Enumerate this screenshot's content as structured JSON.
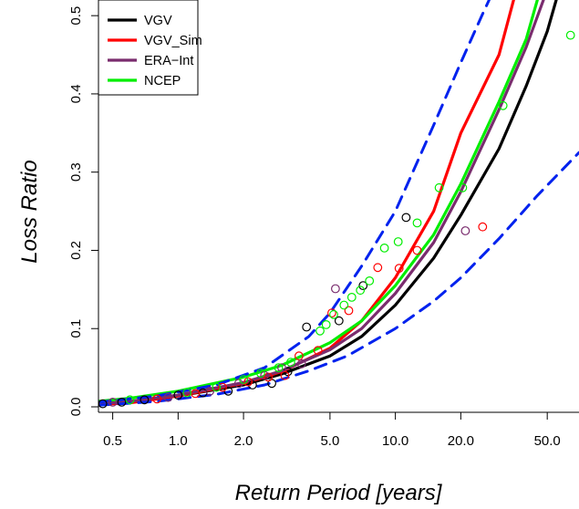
{
  "chart_data": {
    "type": "scatter",
    "xlabel": "Return Period [years]",
    "ylabel": "Loss Ratio",
    "x_scale": "log",
    "xlim": [
      0.43,
      70
    ],
    "ylim": [
      -0.007,
      0.52
    ],
    "x_ticks": [
      0.5,
      1.0,
      2.0,
      5.0,
      10.0,
      20.0,
      50.0
    ],
    "x_tick_labels": [
      "0.5",
      "1.0",
      "2.0",
      "5.0",
      "10.0",
      "20.0",
      "50.0"
    ],
    "y_ticks": [
      0.0,
      0.1,
      0.2,
      0.3,
      0.4,
      0.5
    ],
    "y_tick_labels": [
      "0.0",
      "0.1",
      "0.2",
      "0.3",
      "0.4",
      "0.5"
    ],
    "legend_position": "top-left",
    "series": [
      {
        "name": "VGV",
        "color": "#000000",
        "style": "solid",
        "curve": [
          [
            0.43,
            0.003
          ],
          [
            0.6,
            0.006
          ],
          [
            1,
            0.014
          ],
          [
            2,
            0.028
          ],
          [
            3,
            0.042
          ],
          [
            5,
            0.065
          ],
          [
            7,
            0.09
          ],
          [
            10,
            0.13
          ],
          [
            15,
            0.19
          ],
          [
            20,
            0.245
          ],
          [
            30,
            0.33
          ],
          [
            40,
            0.41
          ],
          [
            50,
            0.48
          ],
          [
            55,
            0.52
          ]
        ],
        "points": [
          [
            0.45,
            0.004
          ],
          [
            0.55,
            0.006
          ],
          [
            0.7,
            0.009
          ],
          [
            1.0,
            0.015
          ],
          [
            1.3,
            0.018
          ],
          [
            1.7,
            0.02
          ],
          [
            2.2,
            0.028
          ],
          [
            2.7,
            0.03
          ],
          [
            3.2,
            0.045
          ],
          [
            3.9,
            0.102
          ],
          [
            5.5,
            0.11
          ],
          [
            7.1,
            0.155
          ],
          [
            11.2,
            0.242
          ]
        ]
      },
      {
        "name": "VGV_Sim",
        "color": "#ff0000",
        "style": "solid",
        "curve": [
          [
            0.43,
            0.003
          ],
          [
            0.6,
            0.005
          ],
          [
            1,
            0.014
          ],
          [
            2,
            0.03
          ],
          [
            3,
            0.045
          ],
          [
            5,
            0.075
          ],
          [
            7,
            0.11
          ],
          [
            10,
            0.165
          ],
          [
            15,
            0.25
          ],
          [
            20,
            0.35
          ],
          [
            30,
            0.45
          ],
          [
            35,
            0.52
          ]
        ],
        "points": [
          [
            0.8,
            0.01
          ],
          [
            1.2,
            0.017
          ],
          [
            1.6,
            0.025
          ],
          [
            2.1,
            0.032
          ],
          [
            2.6,
            0.038
          ],
          [
            3.1,
            0.04
          ],
          [
            3.6,
            0.065
          ],
          [
            4.4,
            0.072
          ],
          [
            5.1,
            0.12
          ],
          [
            6.1,
            0.123
          ],
          [
            8.3,
            0.178
          ],
          [
            10.4,
            0.177
          ],
          [
            12.6,
            0.2
          ],
          [
            25.2,
            0.23
          ]
        ]
      },
      {
        "name": "ERA−Int",
        "color": "#7a2c6e",
        "style": "solid",
        "curve": [
          [
            0.43,
            0.004
          ],
          [
            0.6,
            0.007
          ],
          [
            1,
            0.015
          ],
          [
            2,
            0.031
          ],
          [
            3,
            0.046
          ],
          [
            5,
            0.073
          ],
          [
            7,
            0.1
          ],
          [
            10,
            0.145
          ],
          [
            15,
            0.21
          ],
          [
            20,
            0.275
          ],
          [
            30,
            0.38
          ],
          [
            40,
            0.46
          ],
          [
            48,
            0.52
          ]
        ],
        "points": [
          [
            0.5,
            0.006
          ],
          [
            0.9,
            0.012
          ],
          [
            1.4,
            0.02
          ],
          [
            1.9,
            0.03
          ],
          [
            2.5,
            0.04
          ],
          [
            3.0,
            0.05
          ],
          [
            3.7,
            0.055
          ],
          [
            5.3,
            0.151
          ],
          [
            21.0,
            0.225
          ]
        ]
      },
      {
        "name": "NCEP",
        "color": "#00ee00",
        "style": "solid",
        "curve": [
          [
            0.43,
            0.007
          ],
          [
            0.6,
            0.011
          ],
          [
            1,
            0.02
          ],
          [
            2,
            0.038
          ],
          [
            3,
            0.053
          ],
          [
            5,
            0.082
          ],
          [
            7,
            0.11
          ],
          [
            10,
            0.155
          ],
          [
            15,
            0.22
          ],
          [
            20,
            0.285
          ],
          [
            30,
            0.39
          ],
          [
            40,
            0.47
          ],
          [
            45,
            0.52
          ]
        ],
        "points": [
          [
            0.6,
            0.009
          ],
          [
            1.1,
            0.018
          ],
          [
            1.5,
            0.025
          ],
          [
            2.0,
            0.035
          ],
          [
            2.4,
            0.043
          ],
          [
            2.9,
            0.05
          ],
          [
            3.3,
            0.057
          ],
          [
            4.5,
            0.097
          ],
          [
            4.8,
            0.105
          ],
          [
            5.2,
            0.118
          ],
          [
            5.8,
            0.13
          ],
          [
            6.3,
            0.14
          ],
          [
            6.9,
            0.149
          ],
          [
            7.6,
            0.161
          ],
          [
            8.9,
            0.203
          ],
          [
            10.3,
            0.211
          ],
          [
            12.6,
            0.235
          ],
          [
            15.9,
            0.28
          ],
          [
            20.4,
            0.28
          ],
          [
            31.3,
            0.385
          ],
          [
            64.0,
            0.475
          ]
        ]
      },
      {
        "name": "",
        "color": "#0022ee",
        "style": "dashed",
        "curve": [
          [
            0.43,
            0.006
          ],
          [
            0.8,
            0.014
          ],
          [
            1.5,
            0.028
          ],
          [
            2.5,
            0.05
          ],
          [
            4,
            0.09
          ],
          [
            5,
            0.12
          ],
          [
            7,
            0.18
          ],
          [
            10,
            0.25
          ],
          [
            15,
            0.36
          ],
          [
            20,
            0.44
          ],
          [
            25,
            0.5
          ],
          [
            27,
            0.52
          ]
        ]
      },
      {
        "name": "",
        "color": "#0022ee",
        "style": "dashed",
        "curve": [
          [
            0.43,
            0.002
          ],
          [
            0.8,
            0.007
          ],
          [
            1.5,
            0.016
          ],
          [
            2.5,
            0.028
          ],
          [
            4,
            0.046
          ],
          [
            6,
            0.065
          ],
          [
            10,
            0.1
          ],
          [
            15,
            0.135
          ],
          [
            20,
            0.165
          ],
          [
            30,
            0.215
          ],
          [
            45,
            0.27
          ],
          [
            70,
            0.325
          ]
        ]
      }
    ]
  }
}
